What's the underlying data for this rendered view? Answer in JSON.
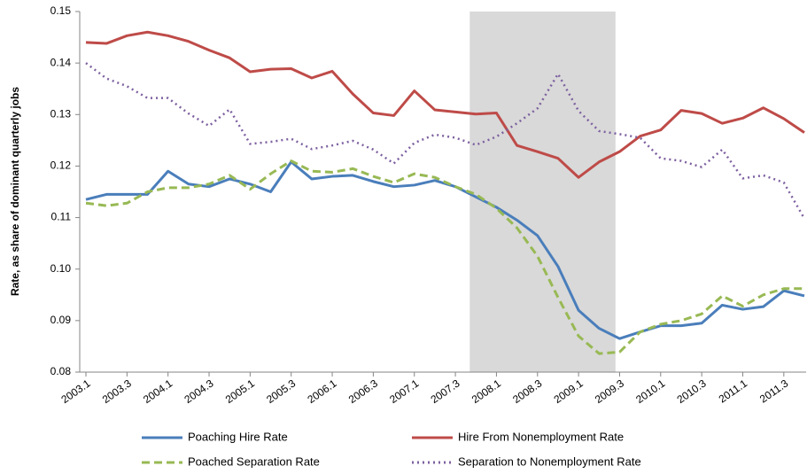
{
  "chart_data": {
    "type": "line",
    "y_label": "Rate, as share of dominant quarterly jobs",
    "categories": [
      "2003.1",
      null,
      "2003.3",
      null,
      "2004.1",
      null,
      "2004.3",
      null,
      "2005.1",
      null,
      "2005.3",
      null,
      "2006.1",
      null,
      "2006.3",
      null,
      "2007.1",
      null,
      "2007.3",
      null,
      "2008.1",
      null,
      "2008.3",
      null,
      "2009.1",
      null,
      "2009.3",
      null,
      "2010.1",
      null,
      "2010.3",
      null,
      "2011.1",
      null,
      "2011.3",
      null
    ],
    "shaded_range": [
      18.7,
      25.8
    ],
    "ylim": [
      0.08,
      0.15
    ],
    "yticks": [
      0.08,
      0.09,
      {
        "value": 0.1,
        "label": "0.10"
      },
      0.11,
      0.12,
      0.13,
      0.14,
      0.15
    ],
    "series": [
      {
        "name": "Poaching Hire Rate",
        "color": "#4a7ebb",
        "style": "solid",
        "values": [
          0.1135,
          0.1145,
          0.1145,
          0.1145,
          0.119,
          0.1165,
          0.116,
          0.1175,
          0.1165,
          0.115,
          0.1208,
          0.1175,
          0.118,
          0.1182,
          0.117,
          0.116,
          0.1163,
          0.1172,
          0.116,
          0.114,
          0.112,
          0.1095,
          0.1065,
          0.1005,
          0.092,
          0.0885,
          0.0865,
          0.0878,
          0.089,
          0.089,
          0.0895,
          0.093,
          0.0922,
          0.0927,
          0.0958,
          0.0948
        ]
      },
      {
        "name": "Hire From Nonemployment Rate",
        "color": "#be4b48",
        "style": "solid",
        "values": [
          0.144,
          0.1438,
          0.1453,
          0.146,
          0.1453,
          0.1442,
          0.1425,
          0.141,
          0.1383,
          0.1388,
          0.1389,
          0.1371,
          0.1384,
          0.134,
          0.1303,
          0.1298,
          0.1346,
          0.1309,
          0.1305,
          0.1301,
          0.1303,
          0.124,
          0.1228,
          0.1215,
          0.1178,
          0.1208,
          0.1228,
          0.1258,
          0.127,
          0.1308,
          0.1302,
          0.1283,
          0.1293,
          0.1313,
          0.1292,
          0.1265
        ]
      },
      {
        "name": "Poached Separation Rate",
        "color": "#98b954",
        "style": "dashed",
        "values": [
          0.1128,
          0.1123,
          0.1128,
          0.115,
          0.1158,
          0.1158,
          0.1165,
          0.1182,
          0.1155,
          0.1185,
          0.121,
          0.119,
          0.1188,
          0.1195,
          0.118,
          0.1168,
          0.1185,
          0.1178,
          0.116,
          0.1145,
          0.1118,
          0.108,
          0.1025,
          0.0945,
          0.087,
          0.0836,
          0.0839,
          0.0878,
          0.0893,
          0.09,
          0.0913,
          0.0948,
          0.0928,
          0.095,
          0.0962,
          0.0962
        ]
      },
      {
        "name": "Separation to Nonemployment Rate",
        "color": "#7d60a0",
        "style": "dotted",
        "values": [
          0.14,
          0.137,
          0.1355,
          0.1332,
          0.1332,
          0.1302,
          0.1278,
          0.131,
          0.1243,
          0.1247,
          0.1253,
          0.1233,
          0.124,
          0.1249,
          0.1232,
          0.1205,
          0.1245,
          0.1261,
          0.1255,
          0.1241,
          0.1257,
          0.1283,
          0.1312,
          0.1379,
          0.1307,
          0.1268,
          0.1262,
          0.1255,
          0.1215,
          0.121,
          0.1198,
          0.1232,
          0.1176,
          0.1182,
          0.1168,
          0.1098
        ]
      }
    ]
  }
}
